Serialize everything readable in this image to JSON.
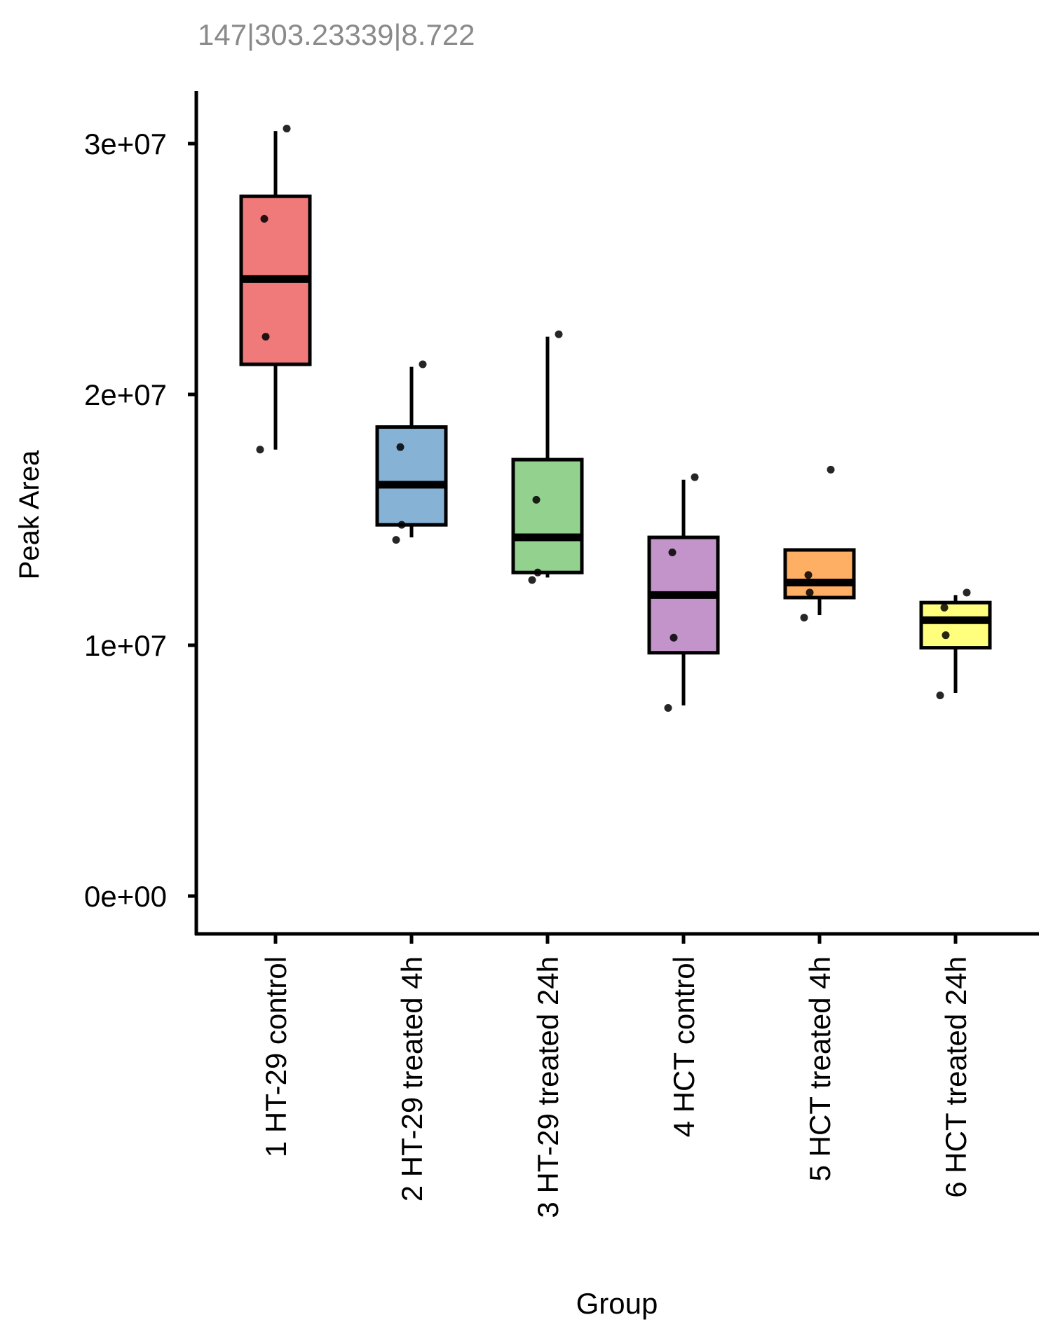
{
  "chart_data": {
    "type": "boxplot",
    "title": "147|303.23339|8.722",
    "xlabel": "Group",
    "ylabel": "Peak Area",
    "ylim": [
      -1500000,
      32000000
    ],
    "yticks": [
      {
        "value": 0,
        "label": "0e+00"
      },
      {
        "value": 10000000,
        "label": "1e+07"
      },
      {
        "value": 20000000,
        "label": "2e+07"
      },
      {
        "value": 30000000,
        "label": "3e+07"
      }
    ],
    "legend": "none",
    "grid": false,
    "groups": [
      {
        "label": "1 HT-29 control",
        "color": "#F07A7A",
        "whisker_low": 17800000,
        "q1": 21200000,
        "median": 24600000,
        "q3": 27900000,
        "whisker_high": 30500000,
        "points": [
          30600000,
          27000000,
          22300000,
          17800000
        ]
      },
      {
        "label": "2 HT-29 treated 4h",
        "color": "#86B2D6",
        "whisker_low": 14300000,
        "q1": 14800000,
        "median": 16400000,
        "q3": 18700000,
        "whisker_high": 21100000,
        "points": [
          21200000,
          17900000,
          14800000,
          14200000
        ]
      },
      {
        "label": "3 HT-29 treated 24h",
        "color": "#93D18F",
        "whisker_low": 12700000,
        "q1": 12900000,
        "median": 14300000,
        "q3": 17400000,
        "whisker_high": 22300000,
        "points": [
          22400000,
          15800000,
          12900000,
          12600000
        ]
      },
      {
        "label": "4 HCT control",
        "color": "#C294C9",
        "whisker_low": 7600000,
        "q1": 9700000,
        "median": 12000000,
        "q3": 14300000,
        "whisker_high": 16600000,
        "points": [
          16700000,
          13700000,
          10300000,
          7500000
        ]
      },
      {
        "label": "5 HCT treated 4h",
        "color": "#FFAF64",
        "whisker_low": 11200000,
        "q1": 11900000,
        "median": 12500000,
        "q3": 13800000,
        "whisker_high": 13800000,
        "points": [
          17000000,
          12800000,
          12100000,
          11100000
        ]
      },
      {
        "label": "6 HCT treated 24h",
        "color": "#FFFF7D",
        "whisker_low": 8100000,
        "q1": 9900000,
        "median": 11000000,
        "q3": 11700000,
        "whisker_high": 12000000,
        "points": [
          12100000,
          11500000,
          10400000,
          8000000
        ]
      }
    ]
  }
}
